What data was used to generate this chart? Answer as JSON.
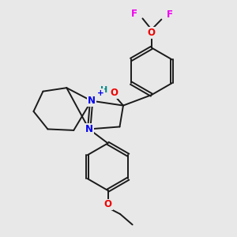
{
  "bg_color": "#e8e8e8",
  "bond_color": "#1a1a1a",
  "bond_width": 1.4,
  "atom_colors": {
    "N": "#0000ee",
    "O": "#ee0000",
    "F": "#ee00ee",
    "H": "#008888",
    "C": "#1a1a1a"
  },
  "font_size": 8.5,
  "fig_size": [
    3.0,
    3.0
  ],
  "dpi": 100
}
